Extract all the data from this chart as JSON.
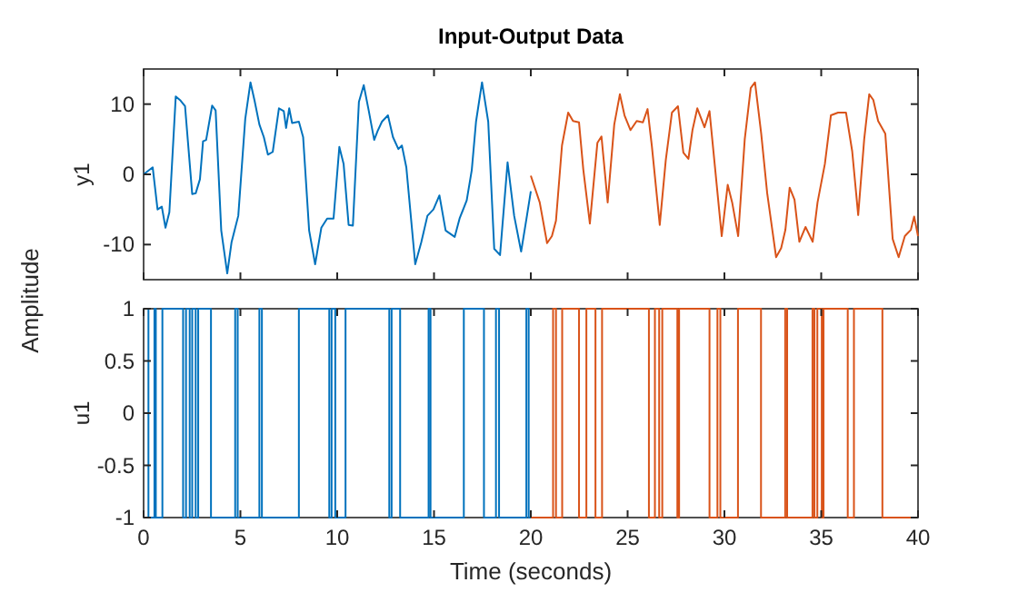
{
  "chart_data": [
    {
      "type": "line",
      "title": "Input-Output Data",
      "ylabel": "y1",
      "annotations": [
        "Amplitude"
      ],
      "xlim": [
        0,
        40
      ],
      "xticks": [
        0,
        5,
        10,
        15,
        20,
        25,
        30,
        35,
        40
      ],
      "ylim": [
        -15,
        15
      ],
      "yticks": [
        -10,
        0,
        10
      ],
      "tick_labels": "y",
      "series": [
        {
          "color": "#0072bd",
          "x": [
            0,
            0.47,
            0.72,
            0.94,
            1.13,
            1.33,
            1.66,
            1.91,
            2.14,
            2.51,
            2.69,
            2.91,
            3.07,
            3.23,
            3.54,
            3.72,
            4.01,
            4.32,
            4.54,
            4.89,
            5.25,
            5.52,
            5.73,
            5.98,
            6.21,
            6.42,
            6.67,
            6.99,
            7.24,
            7.36,
            7.52,
            7.67,
            8.02,
            8.24,
            8.55,
            8.86,
            9.18,
            9.48,
            9.81,
            10.11,
            10.33,
            10.59,
            10.81,
            11.12,
            11.37,
            11.62,
            11.91,
            12.09,
            12.31,
            12.62,
            12.88,
            13.16,
            13.34,
            13.57,
            14.03,
            14.34,
            14.66,
            14.97,
            15.28,
            15.6,
            16.07,
            16.32,
            16.69,
            16.95,
            17.17,
            17.48,
            17.8,
            18.11,
            18.41,
            18.8,
            19.14,
            19.5,
            19.8,
            20
          ],
          "values": [
            0,
            1,
            -5,
            -4.6,
            -7.6,
            -5.4,
            11.1,
            10.5,
            9.7,
            -2.8,
            -2.7,
            -0.7,
            4.7,
            4.9,
            9.8,
            9.1,
            -8,
            -14.1,
            -9.7,
            -5.9,
            7.9,
            13.1,
            10.5,
            7.1,
            5.3,
            2.8,
            3.2,
            9.4,
            9,
            6.6,
            9.4,
            7.3,
            7.5,
            5.3,
            -8,
            -12.8,
            -7.6,
            -6.3,
            -6.3,
            3.9,
            1.5,
            -7.2,
            -7.3,
            10.3,
            12.7,
            9.2,
            4.9,
            6.2,
            7.5,
            8.4,
            5.3,
            3.6,
            4.1,
            1,
            -12.8,
            -9.7,
            -5.9,
            -5,
            -3,
            -8,
            -8.9,
            -6.3,
            -3.7,
            0.6,
            7.5,
            13.1,
            7.5,
            -10.6,
            -11.5,
            1.7,
            -5.9,
            -11,
            -5.9,
            -2.4
          ]
        },
        {
          "color": "#d95319",
          "x": [
            20,
            20.46,
            20.84,
            21.09,
            21.3,
            21.61,
            21.93,
            22.18,
            22.49,
            22.71,
            23.05,
            23.44,
            23.65,
            23.97,
            24.31,
            24.6,
            24.84,
            25.15,
            25.47,
            25.79,
            26.03,
            26.25,
            26.66,
            26.97,
            27.29,
            27.6,
            27.88,
            28.14,
            28.35,
            28.6,
            28.97,
            29.23,
            29.86,
            30.17,
            30.4,
            30.71,
            31.05,
            31.36,
            31.58,
            31.9,
            32.21,
            32.67,
            32.93,
            33.15,
            33.37,
            33.62,
            33.87,
            34.19,
            34.56,
            34.81,
            35.19,
            35.5,
            35.87,
            36.28,
            36.6,
            36.91,
            37.22,
            37.48,
            37.69,
            37.94,
            38.31,
            38.69,
            39,
            39.32,
            39.63,
            39.8,
            40
          ],
          "values": [
            -0.2,
            -4,
            -9.8,
            -8.8,
            -6.6,
            4.1,
            8.8,
            7.6,
            7.4,
            0.7,
            -7,
            4.5,
            5.4,
            -4,
            7.1,
            11.4,
            8.4,
            6.3,
            7.6,
            7.4,
            9.3,
            4.1,
            -7.2,
            2,
            8.8,
            9.7,
            3.1,
            2.2,
            6.3,
            9.4,
            6.7,
            9,
            -8.8,
            -1.5,
            -4,
            -8.8,
            5,
            12.3,
            13.1,
            5.8,
            -2.7,
            -11.8,
            -10.5,
            -7.9,
            -1.9,
            -3.6,
            -9.6,
            -7.5,
            -9.6,
            -4,
            1.5,
            8.4,
            8.8,
            8.8,
            3.3,
            -5.8,
            5,
            11.4,
            10.6,
            7.6,
            5.8,
            -9.2,
            -11.8,
            -8.8,
            -7.9,
            -6,
            -8.8
          ]
        }
      ]
    },
    {
      "type": "step",
      "ylabel": "u1",
      "xlabel": "Time (seconds)",
      "xlim": [
        0,
        40
      ],
      "xticks": [
        0,
        5,
        10,
        15,
        20,
        25,
        30,
        35,
        40
      ],
      "ylim": [
        -1,
        1
      ],
      "yticks": [
        -1,
        -0.5,
        0,
        0.5,
        1
      ],
      "series": [
        {
          "color": "#0072bd",
          "x": [
            0,
            0.25,
            0.56,
            0.63,
            0.97,
            2.04,
            2.19,
            2.38,
            2.51,
            2.69,
            2.82,
            3.48,
            4.73,
            4.86,
            5.98,
            6.11,
            8.02,
            9.59,
            9.71,
            9.9,
            10.43,
            12.69,
            12.81,
            13.25,
            14.72,
            14.82,
            16.54,
            17.58,
            18.2,
            18.36,
            19.77,
            19.89,
            20
          ],
          "values": [
            1,
            -1,
            1,
            -1,
            1,
            -1,
            1,
            -1,
            1,
            -1,
            1,
            -1,
            1,
            -1,
            1,
            -1,
            1,
            -1,
            1,
            -1,
            1,
            -1,
            1,
            -1,
            1,
            -1,
            1,
            -1,
            1,
            -1,
            1,
            -1,
            -1
          ]
        },
        {
          "color": "#d95319",
          "x": [
            20,
            21.15,
            21.3,
            21.62,
            22.49,
            22.87,
            23.34,
            23.68,
            26.1,
            26.41,
            26.63,
            26.79,
            27.57,
            27.66,
            29.23,
            29.64,
            29.79,
            30.7,
            31.89,
            33.14,
            33.24,
            34.55,
            34.65,
            34.8,
            35.03,
            35.12,
            36.37,
            36.69,
            38.16,
            40
          ],
          "values": [
            -1,
            1,
            -1,
            1,
            -1,
            1,
            -1,
            1,
            -1,
            1,
            -1,
            1,
            -1,
            1,
            -1,
            1,
            -1,
            1,
            -1,
            1,
            -1,
            1,
            -1,
            1,
            -1,
            1,
            -1,
            1,
            -1,
            -1
          ]
        }
      ]
    }
  ]
}
